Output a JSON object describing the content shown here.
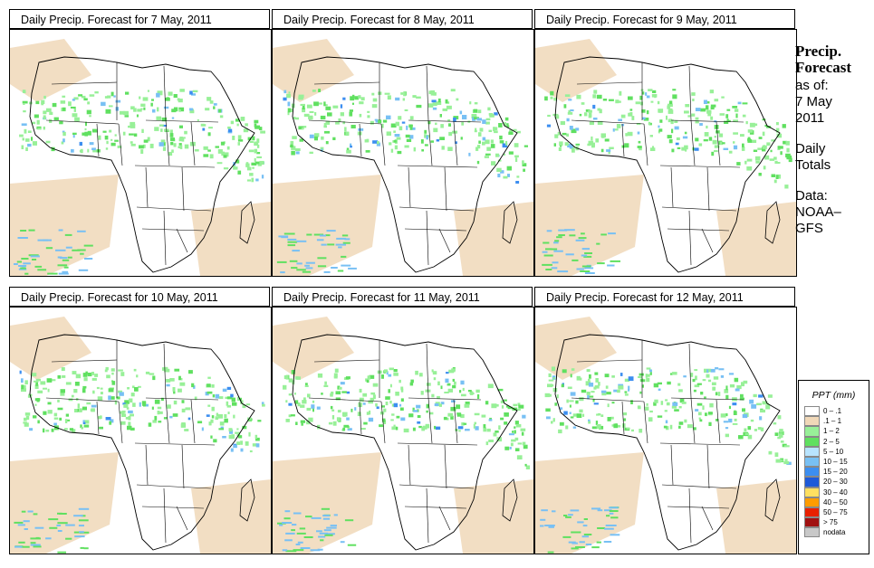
{
  "panels": [
    {
      "title": "Daily Precip. Forecast for  7 May, 2011"
    },
    {
      "title": "Daily Precip. Forecast for  8 May, 2011"
    },
    {
      "title": "Daily Precip. Forecast for  9 May, 2011"
    },
    {
      "title": "Daily Precip. Forecast for  10 May, 2011"
    },
    {
      "title": "Daily Precip. Forecast for  11 May, 2011"
    },
    {
      "title": "Daily Precip. Forecast for  12 May, 2011"
    }
  ],
  "sidebar": {
    "heading_line1": "Precip.",
    "heading_line2": "Forecast",
    "asof_line1": "as of:",
    "asof_line2": "7 May",
    "asof_line3": "2011",
    "daily_line1": "Daily",
    "daily_line2": "Totals",
    "data_line1": "Data:",
    "data_line2": "NOAA–",
    "data_line3": "GFS"
  },
  "legend": {
    "title": "PPT (mm)",
    "classes": [
      {
        "label": "0 – .1",
        "color": "#ffffff"
      },
      {
        "label": ".1 – 1",
        "color": "#f0d8b8"
      },
      {
        "label": "1 – 2",
        "color": "#98f098"
      },
      {
        "label": "2 – 5",
        "color": "#60e060"
      },
      {
        "label": "5 – 10",
        "color": "#b8e4ff"
      },
      {
        "label": "10 – 15",
        "color": "#78c0f4"
      },
      {
        "label": "15 – 20",
        "color": "#3c8ef0"
      },
      {
        "label": "20 – 30",
        "color": "#1e5ad8"
      },
      {
        "label": "30 – 40",
        "color": "#ffe060"
      },
      {
        "label": "40 – 50",
        "color": "#ff9c00"
      },
      {
        "label": "50 – 75",
        "color": "#e82000"
      },
      {
        "label": "> 75",
        "color": "#a01010"
      },
      {
        "label": "nodata",
        "color": "#c8c8c8"
      }
    ]
  }
}
